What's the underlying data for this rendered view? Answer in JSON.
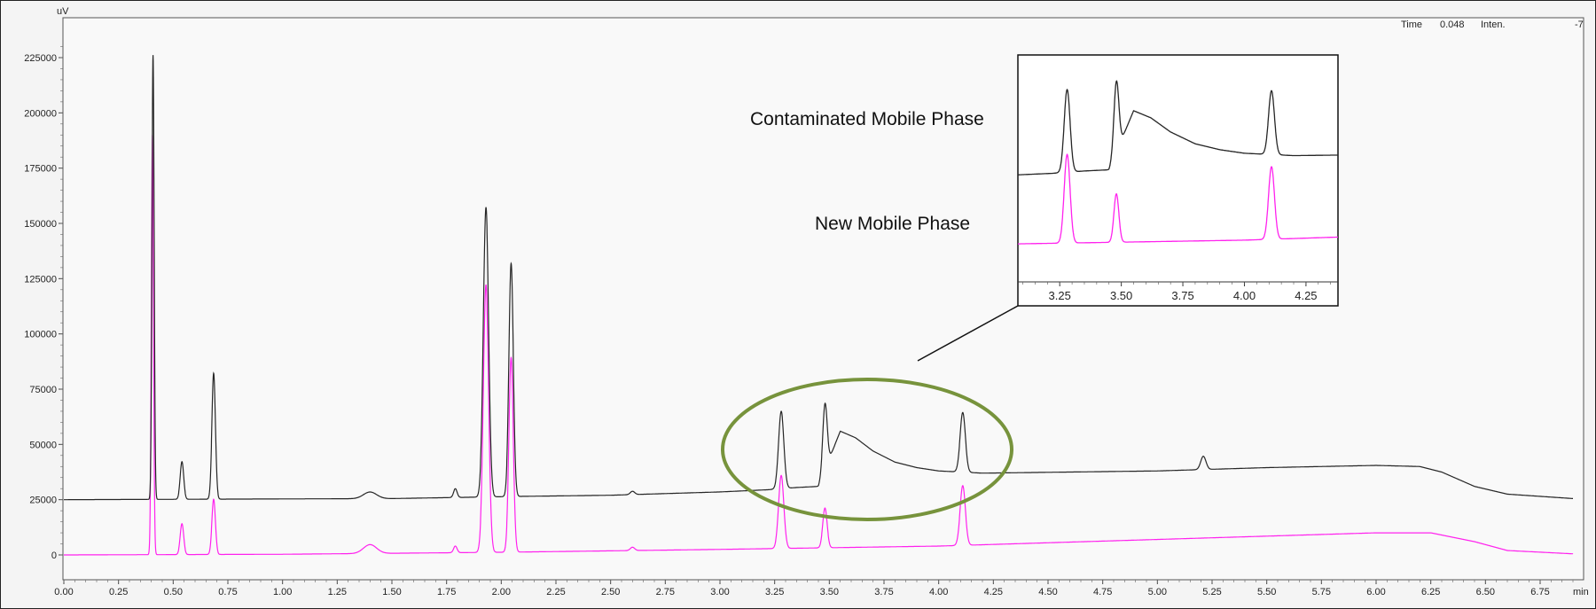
{
  "readout": {
    "time_label": "Time",
    "time_value": "0.048",
    "inten_label": "Inten.",
    "inten_value": "-7"
  },
  "annotations": {
    "contaminated_label": "Contaminated Mobile Phase",
    "new_label": "New Mobile Phase"
  },
  "colors": {
    "contaminated": "#262626",
    "new": "#ff22ee",
    "ellipse": "#77933c",
    "plot_bg": "#f4f4f4"
  },
  "chart_data": {
    "type": "line",
    "title": "",
    "xlabel": "min",
    "ylabel": "uV",
    "xlim": [
      0.0,
      6.9
    ],
    "ylim": [
      -10000,
      235000
    ],
    "x_ticks": [
      "0.00",
      "0.25",
      "0.50",
      "0.75",
      "1.00",
      "1.25",
      "1.50",
      "1.75",
      "2.00",
      "2.25",
      "2.50",
      "2.75",
      "3.00",
      "3.25",
      "3.50",
      "3.75",
      "4.00",
      "4.25",
      "4.50",
      "4.75",
      "5.00",
      "5.25",
      "5.50",
      "5.75",
      "6.00",
      "6.25",
      "6.50",
      "6.75"
    ],
    "y_ticks": [
      "0",
      "25000",
      "50000",
      "75000",
      "100000",
      "125000",
      "150000",
      "175000",
      "200000",
      "225000"
    ],
    "series": [
      {
        "name": "Contaminated Mobile Phase",
        "color": "#262626",
        "baseline": [
          [
            0.0,
            25000
          ],
          [
            1.5,
            25500
          ],
          [
            2.1,
            26500
          ],
          [
            2.5,
            27000
          ],
          [
            3.0,
            28500
          ],
          [
            3.22,
            29500
          ],
          [
            3.35,
            30500
          ],
          [
            3.45,
            31000
          ],
          [
            3.55,
            56000
          ],
          [
            3.62,
            53000
          ],
          [
            3.7,
            47000
          ],
          [
            3.8,
            42000
          ],
          [
            3.9,
            39500
          ],
          [
            4.0,
            38000
          ],
          [
            4.2,
            37000
          ],
          [
            5.0,
            38000
          ],
          [
            5.5,
            39500
          ],
          [
            6.0,
            40500
          ],
          [
            6.2,
            40000
          ],
          [
            6.3,
            37500
          ],
          [
            6.45,
            31000
          ],
          [
            6.6,
            27500
          ],
          [
            6.9,
            25500
          ]
        ],
        "peaks": [
          {
            "x": 0.408,
            "height": 201000,
            "width": 0.005
          },
          {
            "x": 0.54,
            "height": 17000,
            "width": 0.008
          },
          {
            "x": 0.685,
            "height": 57000,
            "width": 0.008
          },
          {
            "x": 1.4,
            "height": 3000,
            "width": 0.03
          },
          {
            "x": 1.79,
            "height": 4000,
            "width": 0.008
          },
          {
            "x": 1.93,
            "height": 131000,
            "width": 0.012
          },
          {
            "x": 2.045,
            "height": 105500,
            "width": 0.01
          },
          {
            "x": 2.6,
            "height": 1500,
            "width": 0.01
          },
          {
            "x": 3.28,
            "height": 35000,
            "width": 0.012
          },
          {
            "x": 3.48,
            "height": 30000,
            "width": 0.01
          },
          {
            "x": 4.11,
            "height": 27000,
            "width": 0.012
          },
          {
            "x": 5.21,
            "height": 6000,
            "width": 0.012
          }
        ]
      },
      {
        "name": "New Mobile Phase",
        "color": "#ff22ee",
        "baseline": [
          [
            0.0,
            0
          ],
          [
            1.0,
            300
          ],
          [
            2.0,
            1200
          ],
          [
            3.0,
            2500
          ],
          [
            4.0,
            4000
          ],
          [
            5.0,
            7000
          ],
          [
            5.5,
            8500
          ],
          [
            6.0,
            10000
          ],
          [
            6.25,
            10000
          ],
          [
            6.45,
            6000
          ],
          [
            6.6,
            2000
          ],
          [
            6.9,
            500
          ]
        ],
        "peaks": [
          {
            "x": 0.405,
            "height": 190000,
            "width": 0.005
          },
          {
            "x": 0.54,
            "height": 14000,
            "width": 0.008
          },
          {
            "x": 0.685,
            "height": 25000,
            "width": 0.008
          },
          {
            "x": 1.4,
            "height": 4000,
            "width": 0.03
          },
          {
            "x": 1.79,
            "height": 3000,
            "width": 0.008
          },
          {
            "x": 1.93,
            "height": 121000,
            "width": 0.012
          },
          {
            "x": 2.045,
            "height": 88000,
            "width": 0.01
          },
          {
            "x": 2.6,
            "height": 1500,
            "width": 0.01
          },
          {
            "x": 3.28,
            "height": 33000,
            "width": 0.012
          },
          {
            "x": 3.48,
            "height": 18000,
            "width": 0.01
          },
          {
            "x": 4.11,
            "height": 27000,
            "width": 0.012
          }
        ]
      }
    ],
    "inset": {
      "xlim": [
        3.08,
        4.38
      ],
      "x_ticks": [
        "3.25",
        "3.50",
        "3.75",
        "4.00",
        "4.25"
      ]
    }
  }
}
